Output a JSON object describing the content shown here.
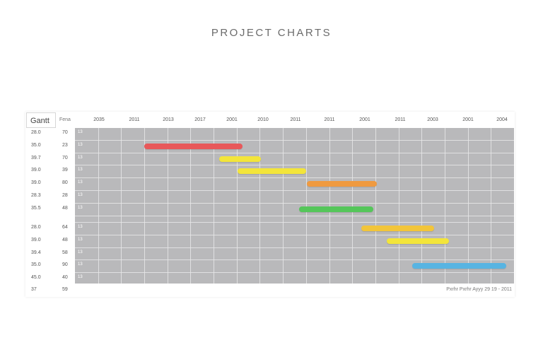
{
  "title": "PROJECT CHARTS",
  "header": {
    "gantt_label": "Gantt",
    "col_label": "Fena"
  },
  "footer_text": "Pxrhr Pxrhr Ayyy 29 19 - 2011",
  "chart_data": {
    "type": "gantt",
    "title": "PROJECT CHARTS",
    "years": [
      "2035",
      "2011",
      "2013",
      "2017",
      "2001",
      "2010",
      "2011",
      "2011",
      "2001",
      "2011",
      "2003",
      "2001",
      "2004"
    ],
    "rows": [
      {
        "c1": "28.0",
        "c2": "70",
        "c3": "13"
      },
      {
        "c1": "35.0",
        "c2": "23",
        "c3": "13"
      },
      {
        "c1": "39.7",
        "c2": "70",
        "c3": "13"
      },
      {
        "c1": "39.0",
        "c2": "39",
        "c3": "13"
      },
      {
        "c1": "39.0",
        "c2": "80",
        "c3": "13"
      },
      {
        "c1": "28.3",
        "c2": "28",
        "c3": "13"
      },
      {
        "c1": "35.5",
        "c2": "48",
        "c3": "13"
      },
      {
        "c1": "",
        "c2": "",
        "c3": ""
      },
      {
        "c1": "28.0",
        "c2": "64",
        "c3": "13"
      },
      {
        "c1": "39.0",
        "c2": "48",
        "c3": "13"
      },
      {
        "c1": "39.4",
        "c2": "58",
        "c3": "13"
      },
      {
        "c1": "35.0",
        "c2": "90",
        "c3": "13"
      },
      {
        "c1": "45.0",
        "c2": "40",
        "c3": "13"
      },
      {
        "c1": "37",
        "c2": "59",
        "c3": ""
      }
    ],
    "bars": [
      {
        "row": 1,
        "start": 3.0,
        "end": 7.25,
        "color": "#e8585a"
      },
      {
        "row": 2,
        "start": 6.25,
        "end": 8.05,
        "color": "#f3e53a"
      },
      {
        "row": 3,
        "start": 7.05,
        "end": 10.0,
        "color": "#f3e53a"
      },
      {
        "row": 4,
        "start": 10.05,
        "end": 13.05,
        "color": "#ef9a40"
      },
      {
        "row": 6,
        "start": 9.7,
        "end": 12.9,
        "color": "#55c65a"
      },
      {
        "row": 8,
        "start": 12.4,
        "end": 15.55,
        "color": "#f2c53a"
      },
      {
        "row": 9,
        "start": 13.5,
        "end": 16.2,
        "color": "#f3e53a"
      },
      {
        "row": 11,
        "start": 14.6,
        "end": 18.65,
        "color": "#58b4e2"
      }
    ],
    "legend": null,
    "grid": true
  }
}
